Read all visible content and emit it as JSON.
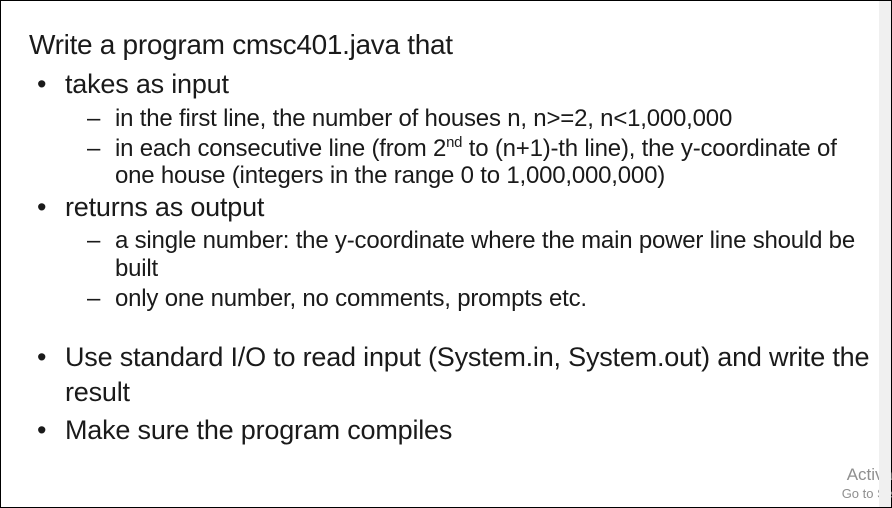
{
  "title": "Write a program cmsc401.java that",
  "bullets": {
    "b1": {
      "label": "takes as input",
      "sub": {
        "s1": "in the first line, the number of houses n, n>=2, n<1,000,000",
        "s2_pre": "in each consecutive line (from 2",
        "s2_sup": "nd",
        "s2_post": " to (n+1)-th line), the y-coordinate of one house (integers in the range 0 to 1,000,000,000)"
      }
    },
    "b2": {
      "label": "returns as output",
      "sub": {
        "s1": "a single number: the y-coordinate where the main power line should be built",
        "s2": "only one number, no comments, prompts etc."
      }
    },
    "b3": {
      "label": "Use standard I/O to read input (System.in, System.out) and write the result"
    },
    "b4": {
      "label": "Make sure the program compiles"
    }
  },
  "watermark": {
    "line1": "Activa",
    "line2": "Go to Se"
  },
  "colors": {
    "text": "#1a1a1a",
    "watermark": "#8f8f8f",
    "background": "#ffffff"
  }
}
